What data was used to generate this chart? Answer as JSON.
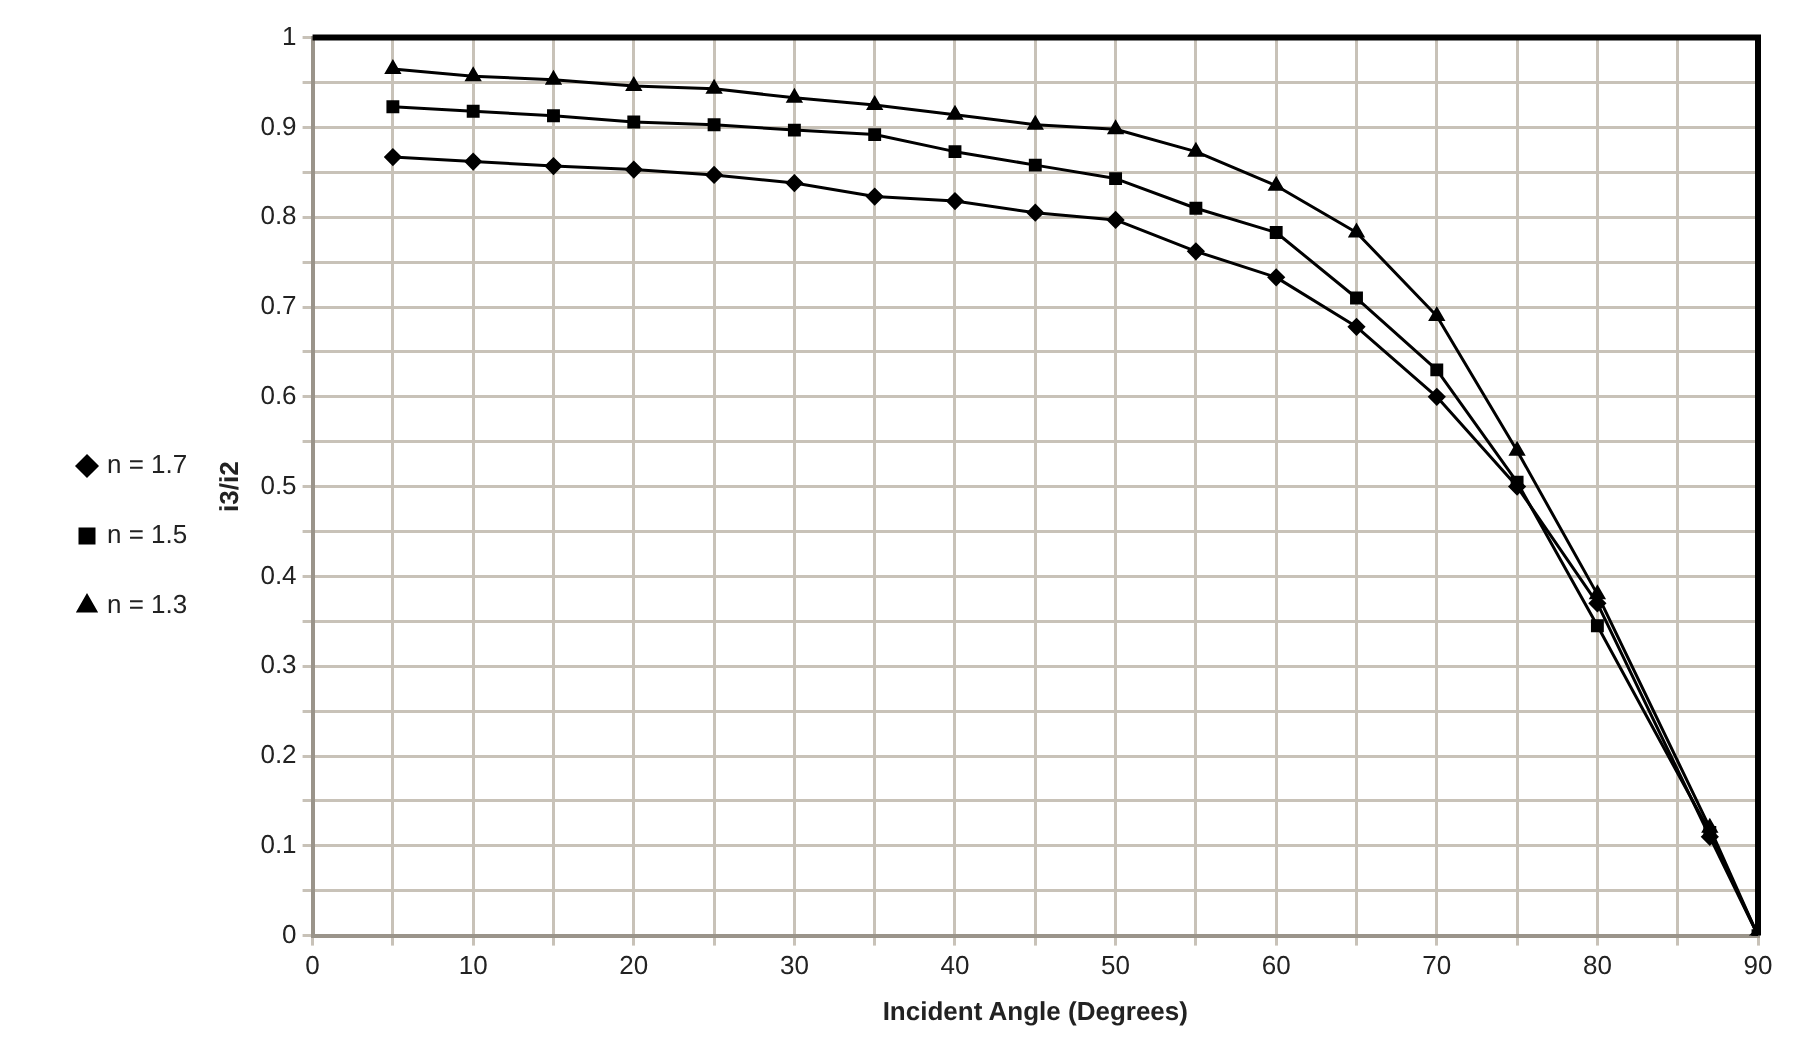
{
  "chart_data": {
    "type": "line",
    "xlabel": "Incident Angle (Degrees)",
    "ylabel": "i3/i2",
    "xlim": [
      0,
      90
    ],
    "ylim": [
      0,
      1
    ],
    "xticks": [
      0,
      {
        "value": 5,
        "label": null
      },
      10,
      {
        "value": 15,
        "label": null
      },
      20,
      {
        "value": 25,
        "label": null
      },
      30,
      {
        "value": 35,
        "label": null
      },
      40,
      {
        "value": 45,
        "label": null
      },
      50,
      {
        "value": 55,
        "label": null
      },
      60,
      {
        "value": 65,
        "label": null
      },
      70,
      {
        "value": 75,
        "label": null
      },
      80,
      {
        "value": 85,
        "label": null
      },
      90
    ],
    "yticks": [
      0,
      {
        "value": 0.05,
        "label": null
      },
      0.1,
      {
        "value": 0.15,
        "label": null
      },
      0.2,
      {
        "value": 0.25,
        "label": null
      },
      0.3,
      {
        "value": 0.35,
        "label": null
      },
      0.4,
      {
        "value": 0.45,
        "label": null
      },
      0.5,
      {
        "value": 0.55,
        "label": null
      },
      0.6,
      {
        "value": 0.65,
        "label": null
      },
      0.7,
      {
        "value": 0.75,
        "label": null
      },
      0.8,
      {
        "value": 0.85,
        "label": null
      },
      0.9,
      {
        "value": 0.95,
        "label": null
      },
      1
    ],
    "x": [
      5,
      10,
      15,
      20,
      25,
      30,
      35,
      40,
      45,
      50,
      55,
      60,
      65,
      70,
      75,
      80,
      87,
      90
    ],
    "grid": true,
    "legend": "left",
    "line_style": "solid",
    "series": [
      {
        "name": "n = 1.7",
        "color": "#000000",
        "marker": "diamond",
        "values": [
          0.867,
          0.862,
          0.857,
          0.853,
          0.847,
          0.838,
          0.823,
          0.818,
          0.805,
          0.797,
          0.762,
          0.733,
          0.678,
          0.6,
          0.5,
          0.37,
          0.11,
          0
        ]
      },
      {
        "name": "n = 1.5",
        "color": "#000000",
        "marker": "square",
        "values": [
          0.923,
          0.918,
          0.913,
          0.906,
          0.903,
          0.897,
          0.892,
          0.873,
          0.858,
          0.843,
          0.81,
          0.783,
          0.71,
          0.63,
          0.505,
          0.345,
          0.115,
          0
        ]
      },
      {
        "name": "n = 1.3",
        "color": "#000000",
        "marker": "triangle",
        "values": [
          0.965,
          0.957,
          0.953,
          0.946,
          0.943,
          0.933,
          0.925,
          0.914,
          0.903,
          0.898,
          0.873,
          0.835,
          0.783,
          0.69,
          0.54,
          0.38,
          0.12,
          0
        ]
      }
    ]
  }
}
